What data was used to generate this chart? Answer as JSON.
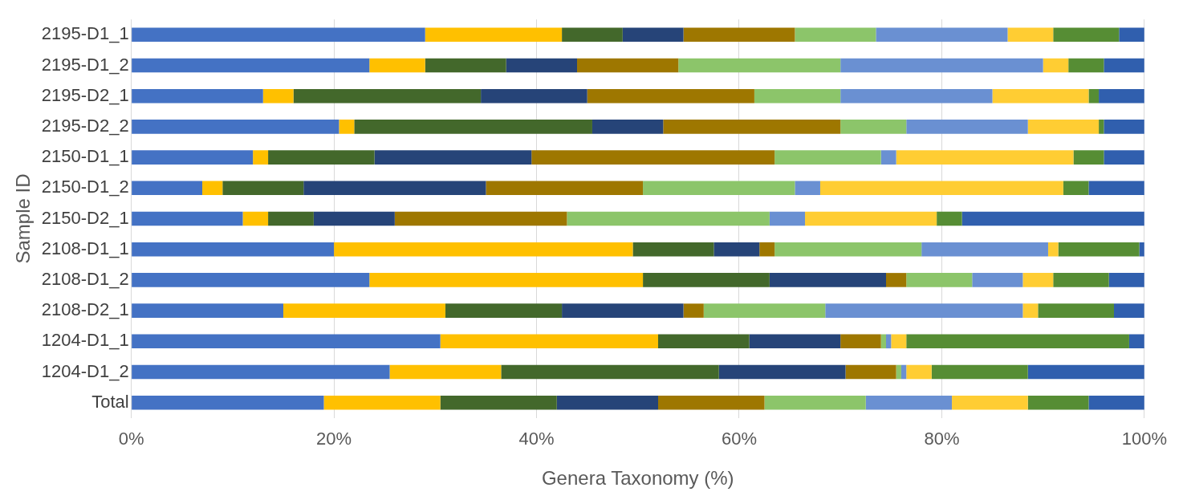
{
  "chart_data": {
    "type": "bar",
    "orientation": "horizontal",
    "stacked": true,
    "xlabel": "Genera Taxonomy (%)",
    "ylabel": "Sample ID",
    "categories": [
      "2195-D1_1",
      "2195-D1_2",
      "2195-D2_1",
      "2195-D2_2",
      "2150-D1_1",
      "2150-D1_2",
      "2150-D2_1",
      "2108-D1_1",
      "2108-D1_2",
      "2108-D2_1",
      "1204-D1_1",
      "1204-D1_2",
      "Total"
    ],
    "series": [
      {
        "color": "#4472c4",
        "values": [
          29,
          23.5,
          13,
          20.5,
          12,
          7,
          11,
          20,
          23.5,
          15,
          30.5,
          25.5,
          19
        ]
      },
      {
        "color": "#ffc000",
        "values": [
          13.5,
          5.5,
          3,
          1.5,
          1.5,
          2,
          2.5,
          29.5,
          27,
          16,
          21.5,
          11,
          11.5
        ]
      },
      {
        "color": "#43682b",
        "values": [
          6,
          8,
          18.5,
          23.5,
          10.5,
          8,
          4.5,
          8,
          12.5,
          11.5,
          9,
          21.5,
          11.5
        ]
      },
      {
        "color": "#264478",
        "values": [
          6,
          7,
          10.5,
          7,
          15.5,
          18,
          8,
          4.5,
          11.5,
          12,
          9,
          12.5,
          10
        ]
      },
      {
        "color": "#9e7700",
        "values": [
          11,
          10,
          16.5,
          17.5,
          24,
          15.5,
          17,
          1.5,
          2,
          2,
          4,
          5,
          10.5
        ]
      },
      {
        "color": "#8cc56a",
        "values": [
          8,
          16,
          8.5,
          6.5,
          10.5,
          15,
          20,
          14.5,
          6.5,
          12,
          0.5,
          0.5,
          10
        ]
      },
      {
        "color": "#6a90d2",
        "values": [
          13,
          20,
          15,
          12,
          1.5,
          2.5,
          3.5,
          12.5,
          5,
          19.5,
          0.5,
          0.5,
          8.5
        ]
      },
      {
        "color": "#ffcd33",
        "values": [
          4.5,
          2.5,
          9.5,
          7,
          17.5,
          24,
          13,
          1,
          3,
          1.5,
          1.5,
          2.5,
          7.5
        ]
      },
      {
        "color": "#568d34",
        "values": [
          6.5,
          3.5,
          1,
          0.5,
          3,
          2.5,
          2.5,
          8,
          5.5,
          7.5,
          22,
          9.5,
          6
        ]
      },
      {
        "color": "#305fae",
        "values": [
          2.5,
          4,
          4.5,
          4,
          4,
          5.5,
          18,
          0.5,
          3.5,
          3,
          1.5,
          11.5,
          5.5
        ]
      }
    ],
    "xlim": [
      0,
      100
    ],
    "xticks": [
      {
        "value": 0,
        "label": "0%"
      },
      {
        "value": 20,
        "label": "20%"
      },
      {
        "value": 40,
        "label": "40%"
      },
      {
        "value": 60,
        "label": "60%"
      },
      {
        "value": 80,
        "label": "80%"
      },
      {
        "value": 100,
        "label": "100%"
      }
    ],
    "grid": "x",
    "legend": false
  }
}
